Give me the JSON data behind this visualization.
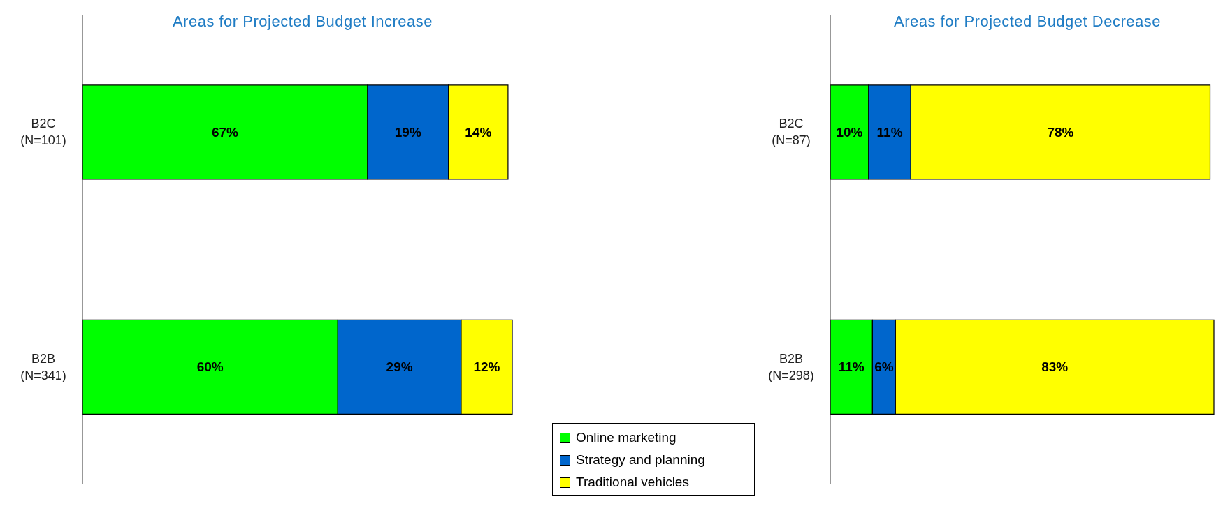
{
  "chart_data": [
    {
      "type": "bar",
      "orientation": "horizontal",
      "stacked": true,
      "title": "Areas for Projected Budget Increase",
      "categories": [
        "B2C\n(N=101)",
        "B2B\n(N=341)"
      ],
      "legend": "bottom right",
      "series": [
        {
          "name": "Online marketing",
          "color": "#00ff00",
          "values": [
            67,
            60
          ],
          "value_labels": [
            "67%",
            "60%"
          ]
        },
        {
          "name": "Strategy and planning",
          "color": "#0066cc",
          "values": [
            19,
            29
          ],
          "value_labels": [
            "19%",
            "29%"
          ]
        },
        {
          "name": "Traditional vehicles",
          "color": "#ffff00",
          "values": [
            14,
            12
          ],
          "value_labels": [
            "14%",
            "12%"
          ]
        }
      ]
    },
    {
      "type": "bar",
      "orientation": "horizontal",
      "stacked": true,
      "title": "Areas for Projected Budget Decrease",
      "categories": [
        "B2C\n(N=87)",
        "B2B\n(N=298)"
      ],
      "series": [
        {
          "color": "#00ff00",
          "values": [
            10,
            11
          ],
          "value_labels": [
            "10%",
            "11%"
          ]
        },
        {
          "color": "#0066cc",
          "values": [
            11,
            6
          ],
          "value_labels": [
            "11%",
            "6%"
          ]
        },
        {
          "color": "#ffff00",
          "values": [
            78,
            83
          ],
          "value_labels": [
            "78%",
            "83%"
          ]
        }
      ]
    }
  ]
}
